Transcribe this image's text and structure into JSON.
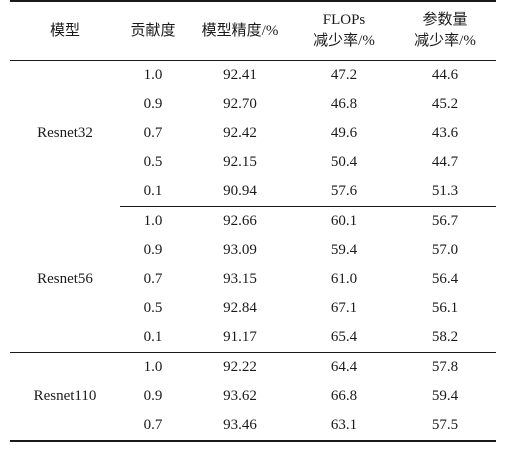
{
  "table": {
    "headers": {
      "model": "模型",
      "contribution": "贡献度",
      "accuracy": "模型精度/%",
      "flops_line1": "FLOPs",
      "flops_line2": "减少率/%",
      "params_line1": "参数量",
      "params_line2": "减少率/%"
    },
    "groups": [
      {
        "model": "Resnet32",
        "rows": [
          [
            "1.0",
            "92.41",
            "47.2",
            "44.6"
          ],
          [
            "0.9",
            "92.70",
            "46.8",
            "45.2"
          ],
          [
            "0.7",
            "92.42",
            "49.6",
            "43.6"
          ],
          [
            "0.5",
            "92.15",
            "50.4",
            "44.7"
          ],
          [
            "0.1",
            "90.94",
            "57.6",
            "51.3"
          ]
        ]
      },
      {
        "model": "Resnet56",
        "rows": [
          [
            "1.0",
            "92.66",
            "60.1",
            "56.7"
          ],
          [
            "0.9",
            "93.09",
            "59.4",
            "57.0"
          ],
          [
            "0.7",
            "93.15",
            "61.0",
            "56.4"
          ],
          [
            "0.5",
            "92.84",
            "67.1",
            "56.1"
          ],
          [
            "0.1",
            "91.17",
            "65.4",
            "58.2"
          ]
        ]
      },
      {
        "model": "Resnet110",
        "rows": [
          [
            "1.0",
            "92.22",
            "64.4",
            "57.8"
          ],
          [
            "0.9",
            "93.62",
            "66.8",
            "59.4"
          ],
          [
            "0.7",
            "93.46",
            "63.1",
            "57.5"
          ]
        ]
      }
    ]
  }
}
